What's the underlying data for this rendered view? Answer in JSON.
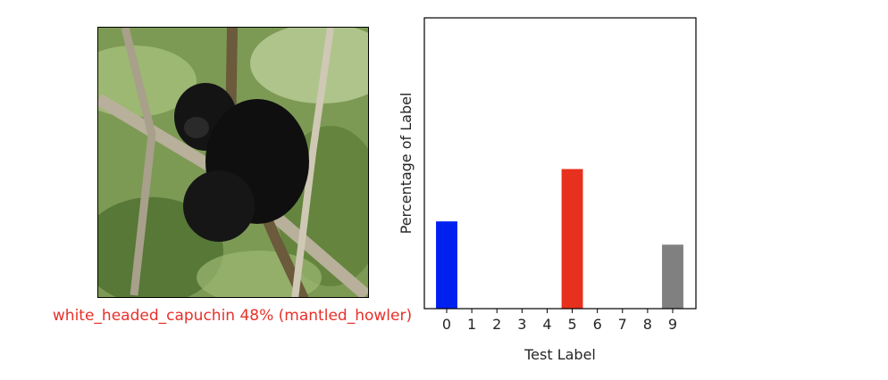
{
  "prediction": {
    "text": "white_headed_capuchin 48% (mantled_howler)",
    "color": "#e8302a"
  },
  "image": {
    "alt": "Black monkey sitting on a tree branch among green leaves"
  },
  "chart_data": {
    "type": "bar",
    "title": "",
    "xlabel": "Test Label",
    "ylabel": "Percentage of Label",
    "categories": [
      "0",
      "1",
      "2",
      "3",
      "4",
      "5",
      "6",
      "7",
      "8",
      "9"
    ],
    "values": [
      30,
      0,
      0,
      0,
      0,
      48,
      0,
      0,
      0,
      22
    ],
    "colors": [
      "#0020f0",
      "#808080",
      "#808080",
      "#808080",
      "#808080",
      "#e8301e",
      "#808080",
      "#808080",
      "#808080",
      "#808080"
    ],
    "ylim": [
      0,
      100
    ],
    "yticks_visible": false,
    "grid": false
  }
}
